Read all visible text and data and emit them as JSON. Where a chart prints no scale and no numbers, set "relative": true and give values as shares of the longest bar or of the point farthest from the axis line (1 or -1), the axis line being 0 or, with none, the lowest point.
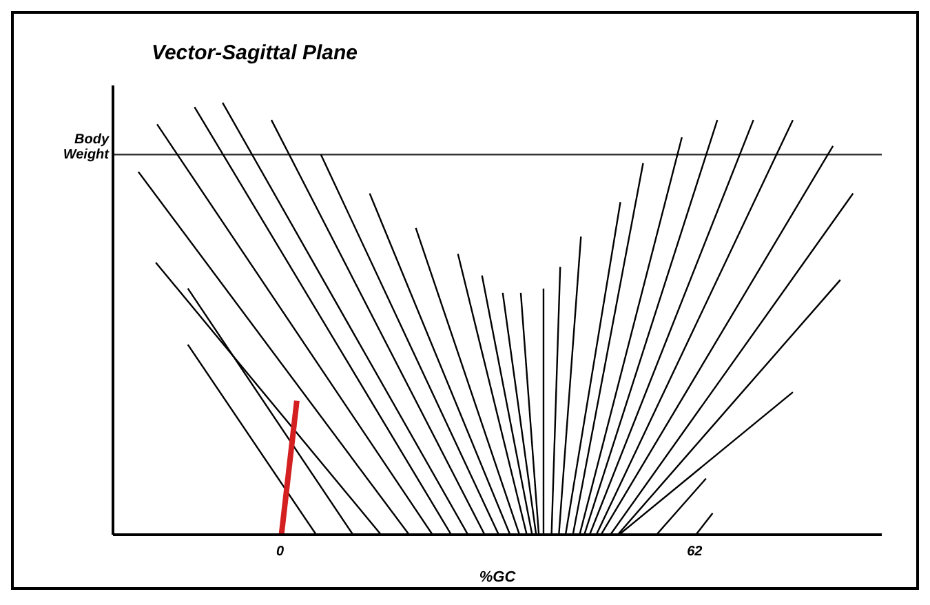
{
  "chart_data": {
    "type": "line",
    "title": "Vector-Sagittal Plane",
    "xlabel": "%GC",
    "relative": true,
    "xlim": [
      -25,
      90
    ],
    "xticks": [
      0,
      62
    ],
    "ref_lines": [
      {
        "axis": "y",
        "value": 0.88,
        "label": "Body Weight",
        "color": "#333333"
      }
    ],
    "series": [
      {
        "color": "#000000",
        "x": [
          5.4,
          -13.8
        ],
        "values": [
          0,
          0.44
        ]
      },
      {
        "color": "#000000",
        "x": [
          10.9,
          -13.8
        ],
        "values": [
          0,
          0.57
        ]
      },
      {
        "color": "#000000",
        "x": [
          15.1,
          -18.6
        ],
        "values": [
          0,
          0.63
        ]
      },
      {
        "color": "#000000",
        "x": [
          19.3,
          -21.2
        ],
        "values": [
          0,
          0.84
        ]
      },
      {
        "color": "#000000",
        "x": [
          22.8,
          -18.4
        ],
        "values": [
          0,
          0.95
        ]
      },
      {
        "color": "#000000",
        "x": [
          25.6,
          -12.8
        ],
        "values": [
          0,
          0.99
        ]
      },
      {
        "color": "#000000",
        "x": [
          28.1,
          -8.6
        ],
        "values": [
          0,
          1.0
        ]
      },
      {
        "color": "#000000",
        "x": [
          30.6,
          -1.3
        ],
        "values": [
          0,
          0.96
        ]
      },
      {
        "color": "#000000",
        "x": [
          32.7,
          6.1
        ],
        "values": [
          0,
          0.88
        ]
      },
      {
        "color": "#000000",
        "x": [
          34.4,
          13.4
        ],
        "values": [
          0,
          0.79
        ]
      },
      {
        "color": "#000000",
        "x": [
          35.8,
          20.3
        ],
        "values": [
          0,
          0.71
        ]
      },
      {
        "color": "#000000",
        "x": [
          36.9,
          26.6
        ],
        "values": [
          0,
          0.65
        ]
      },
      {
        "color": "#000000",
        "x": [
          37.7,
          30.2
        ],
        "values": [
          0,
          0.6
        ]
      },
      {
        "color": "#000000",
        "x": [
          38.3,
          33.3
        ],
        "values": [
          0,
          0.56
        ]
      },
      {
        "color": "#000000",
        "x": [
          38.7,
          36.0
        ],
        "values": [
          0,
          0.56
        ]
      },
      {
        "color": "#000000",
        "x": [
          39.4,
          39.4
        ],
        "values": [
          0,
          0.57
        ]
      },
      {
        "color": "#000000",
        "x": [
          40.6,
          41.9
        ],
        "values": [
          0,
          0.62
        ]
      },
      {
        "color": "#000000",
        "x": [
          41.7,
          45.0
        ],
        "values": [
          0,
          0.69
        ]
      },
      {
        "color": "#000000",
        "x": [
          42.7,
          50.9
        ],
        "values": [
          0,
          0.77
        ]
      },
      {
        "color": "#000000",
        "x": [
          43.8,
          54.3
        ],
        "values": [
          0,
          0.86
        ]
      },
      {
        "color": "#000000",
        "x": [
          44.8,
          60.1
        ],
        "values": [
          0,
          0.92
        ]
      },
      {
        "color": "#000000",
        "x": [
          45.5,
          65.4
        ],
        "values": [
          0,
          0.96
        ]
      },
      {
        "color": "#000000",
        "x": [
          46.3,
          70.8
        ],
        "values": [
          0,
          0.96
        ]
      },
      {
        "color": "#000000",
        "x": [
          47.3,
          76.7
        ],
        "values": [
          0,
          0.96
        ]
      },
      {
        "color": "#000000",
        "x": [
          48.0,
          82.7
        ],
        "values": [
          0,
          0.9
        ]
      },
      {
        "color": "#000000",
        "x": [
          49.4,
          85.7
        ],
        "values": [
          0,
          0.79
        ]
      },
      {
        "color": "#000000",
        "x": [
          50.5,
          83.8
        ],
        "values": [
          0,
          0.59
        ]
      },
      {
        "color": "#000000",
        "x": [
          50.7,
          76.7
        ],
        "values": [
          0,
          0.33
        ]
      },
      {
        "color": "#000000",
        "x": [
          56.3,
          63.7
        ],
        "values": [
          0,
          0.13
        ]
      },
      {
        "color": "#000000",
        "x": [
          62.2,
          64.7
        ],
        "values": [
          0,
          0.05
        ]
      },
      {
        "color": "#d42020",
        "x": [
          0.2,
          2.5
        ],
        "values": [
          0,
          0.31
        ]
      }
    ]
  }
}
